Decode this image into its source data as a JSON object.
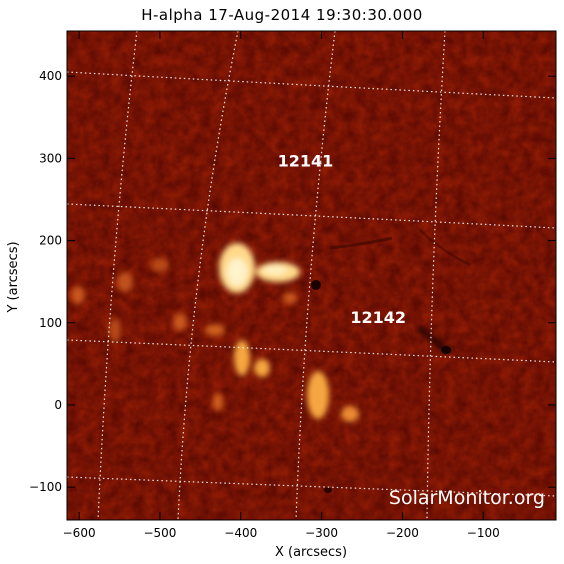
{
  "title": "H-alpha 17-Aug-2014 19:30:30.000",
  "xlabel": "X (arcsecs)",
  "ylabel": "Y (arcsecs)",
  "x_ticks": [
    -600,
    -500,
    -400,
    -300,
    -200,
    -100
  ],
  "y_ticks": [
    -100,
    0,
    100,
    200,
    300,
    400
  ],
  "x_range": [
    -615,
    -10
  ],
  "y_range": [
    -140,
    455
  ],
  "regions": [
    {
      "label": "12141",
      "x": -320,
      "y": 290
    },
    {
      "label": "12142",
      "x": -230,
      "y": 100
    }
  ],
  "watermark": "SolarMonitor.org",
  "colors": {
    "background": "#8e1b05",
    "bright": "#ffe9b0",
    "dark": "#1a0200"
  }
}
